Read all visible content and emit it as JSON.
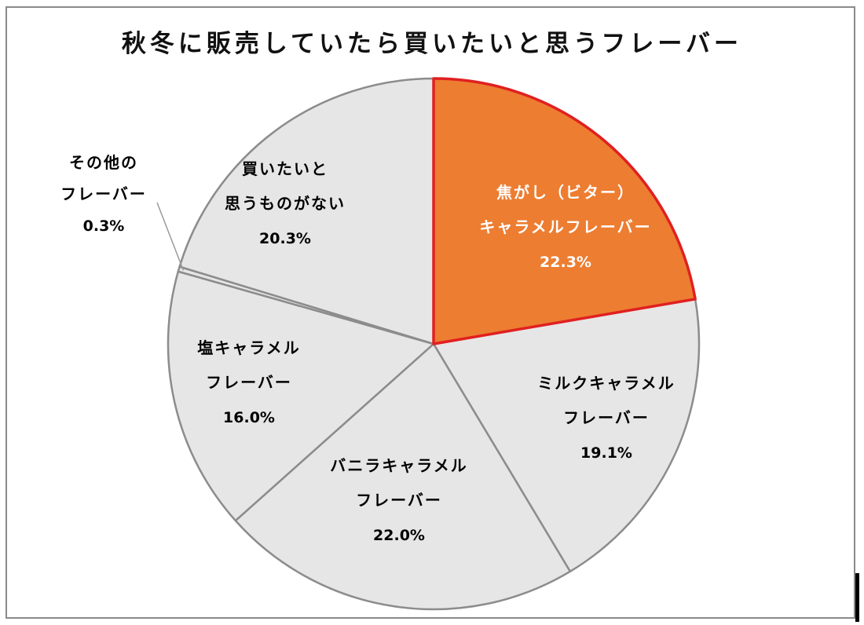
{
  "chart_data": {
    "type": "pie",
    "title": "秋冬に販売していたら買いたいと思うフレーバー",
    "slices": [
      {
        "label": [
          "焦がし（ビター）",
          "キャラメルフレーバー"
        ],
        "percent_label": "22.3%",
        "value": 22.3,
        "color": "#ED7D31",
        "text_color": "#FFFFFF",
        "stroke": "#E02020",
        "highlight": true
      },
      {
        "label": [
          "ミルクキャラメル",
          "フレーバー"
        ],
        "percent_label": "19.1%",
        "value": 19.1,
        "color": "#E7E6E6",
        "text_color": "#000000",
        "stroke": "#8C8C8C"
      },
      {
        "label": [
          "バニラキャラメル",
          "フレーバー"
        ],
        "percent_label": "22.0%",
        "value": 22.0,
        "color": "#E7E6E6",
        "text_color": "#000000",
        "stroke": "#8C8C8C"
      },
      {
        "label": [
          "塩キャラメル",
          "フレーバー"
        ],
        "percent_label": "16.0%",
        "value": 16.0,
        "color": "#E7E6E6",
        "text_color": "#000000",
        "stroke": "#8C8C8C"
      },
      {
        "label": [
          "その他の",
          "フレーバー"
        ],
        "percent_label": "0.3%",
        "value": 0.3,
        "color": "#E7E6E6",
        "text_color": "#000000",
        "stroke": "#8C8C8C",
        "leader_line": true
      },
      {
        "label": [
          "買いたいと",
          "思うものがない"
        ],
        "percent_label": "20.3%",
        "value": 20.3,
        "color": "#E7E6E6",
        "text_color": "#000000",
        "stroke": "#8C8C8C"
      }
    ],
    "start": "12 o'clock",
    "direction": "clockwise",
    "legend": "none"
  }
}
